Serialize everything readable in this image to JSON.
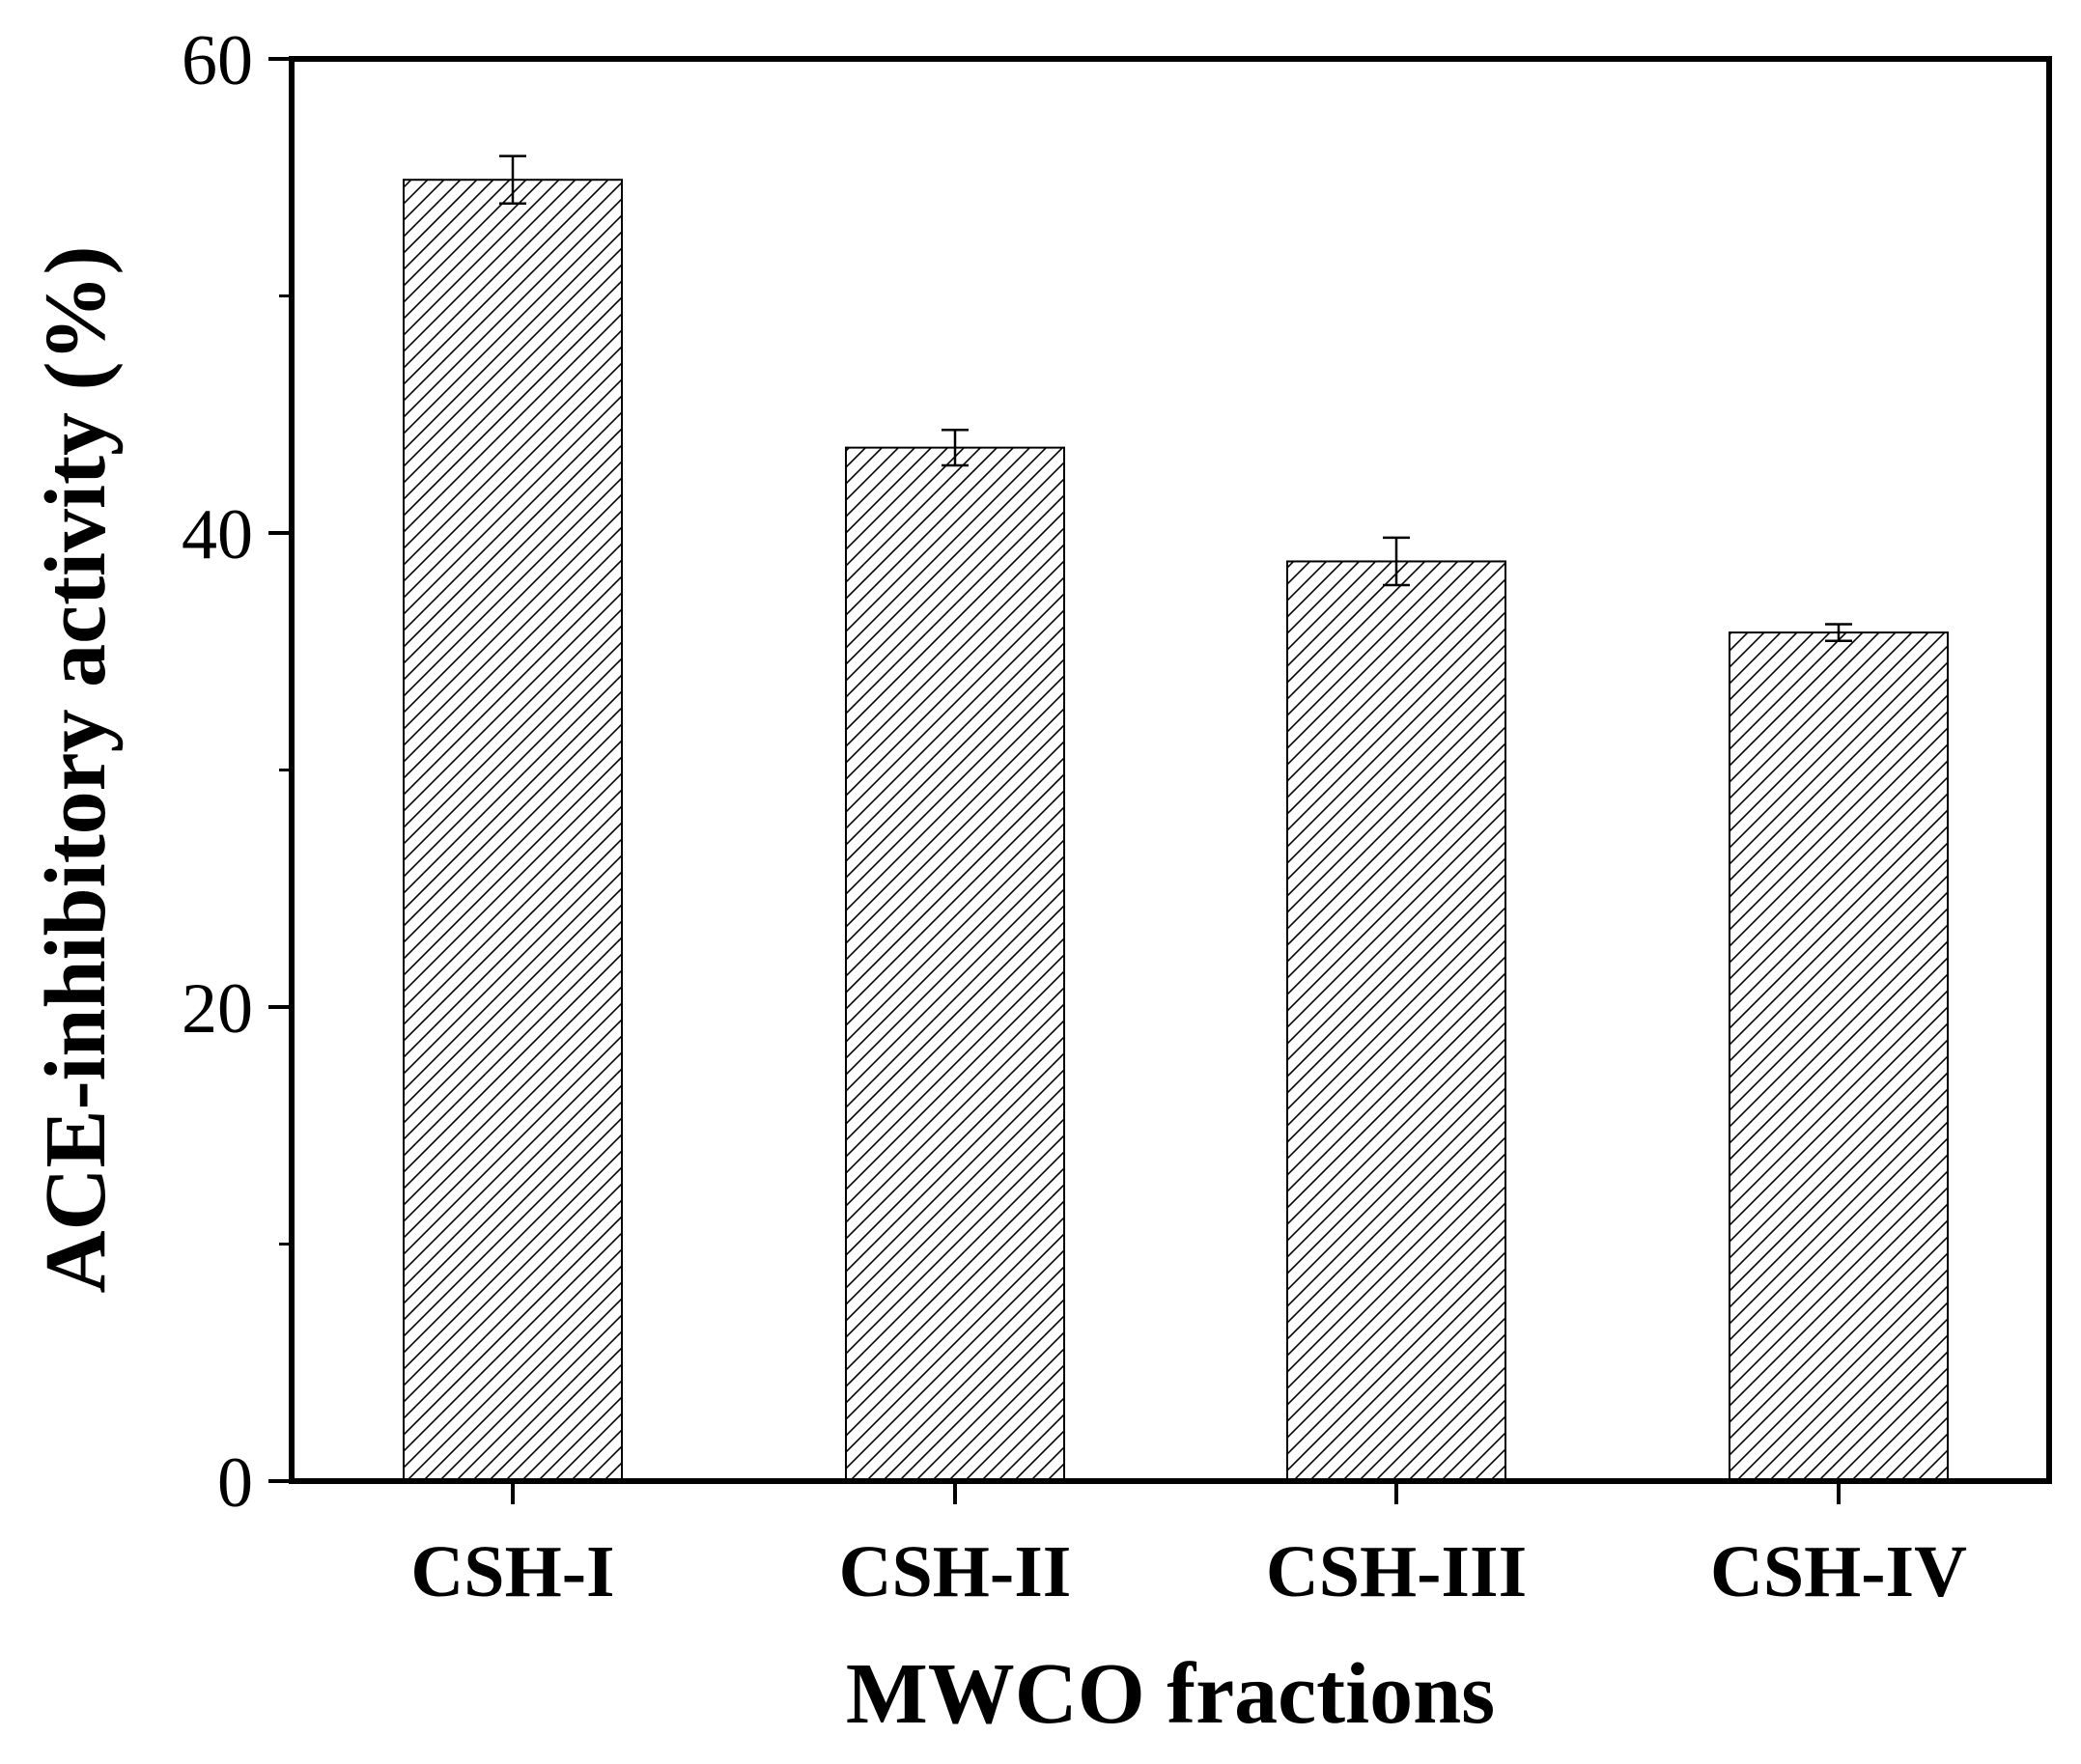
{
  "chart_data": {
    "type": "bar",
    "title": "",
    "xlabel": "MWCO fractions",
    "ylabel": "ACE-inhibitory activity (%)",
    "categories": [
      "CSH-I",
      "CSH-II",
      "CSH-III",
      "CSH-IV"
    ],
    "values": [
      54.9,
      43.6,
      38.8,
      35.8
    ],
    "errors": [
      1.0,
      0.75,
      1.0,
      0.35
    ],
    "ylim": [
      0,
      60
    ],
    "yticks": [
      0,
      20,
      40,
      60
    ],
    "yticks_labels": [
      "0",
      "20",
      "40",
      "60"
    ],
    "grid": false,
    "legend": "none",
    "bar_fill": "hatched",
    "colors": {
      "bar_stroke": "#000000",
      "hatch": "#000000",
      "axis": "#000000",
      "background": "#ffffff"
    }
  }
}
